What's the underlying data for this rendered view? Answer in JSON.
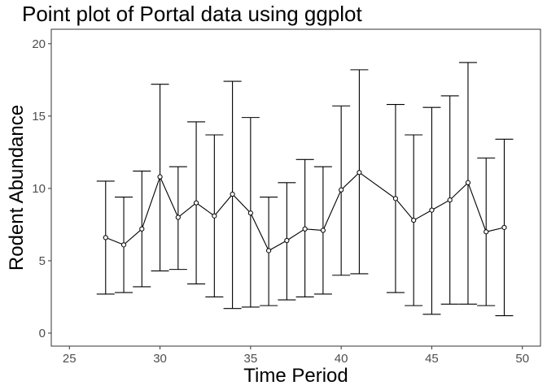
{
  "chart_data": {
    "type": "line",
    "title": "Point plot of Portal data using ggplot",
    "xlabel": "Time Period",
    "ylabel": "Rodent Abundance",
    "xlim": [
      24,
      51
    ],
    "ylim": [
      -0.9,
      21
    ],
    "xticks": [
      25,
      30,
      35,
      40,
      45,
      50
    ],
    "yticks": [
      0,
      5,
      10,
      15,
      20
    ],
    "grid": false,
    "legend": "none",
    "series": [
      {
        "x": [
          27,
          28,
          29,
          30,
          31,
          32,
          33,
          34,
          35,
          36,
          37,
          38,
          39,
          40,
          41,
          43,
          44,
          45,
          46,
          47,
          48,
          49
        ],
        "y": [
          6.6,
          6.1,
          7.2,
          10.8,
          8.0,
          9.0,
          8.1,
          9.6,
          8.3,
          5.7,
          6.4,
          7.2,
          7.1,
          9.9,
          11.1,
          9.3,
          7.8,
          8.5,
          9.2,
          10.4,
          7.0,
          7.3
        ],
        "ymin": [
          2.7,
          2.8,
          3.2,
          4.3,
          4.4,
          3.4,
          2.5,
          1.7,
          1.8,
          1.9,
          2.3,
          2.5,
          2.7,
          4.0,
          4.1,
          2.8,
          1.9,
          1.3,
          2.0,
          2.0,
          1.9,
          1.2
        ],
        "ymax": [
          10.5,
          9.4,
          11.2,
          17.2,
          11.5,
          14.6,
          13.7,
          17.4,
          14.9,
          9.4,
          10.4,
          12.0,
          11.5,
          15.7,
          18.2,
          15.8,
          13.7,
          15.6,
          16.4,
          18.7,
          12.1,
          13.4
        ]
      }
    ],
    "colors": {
      "line": "#000000",
      "point_fill": "#ffffff",
      "panel_border": "#333333",
      "tick_label": "#4d4d4d",
      "axis_title": "#000000"
    }
  }
}
